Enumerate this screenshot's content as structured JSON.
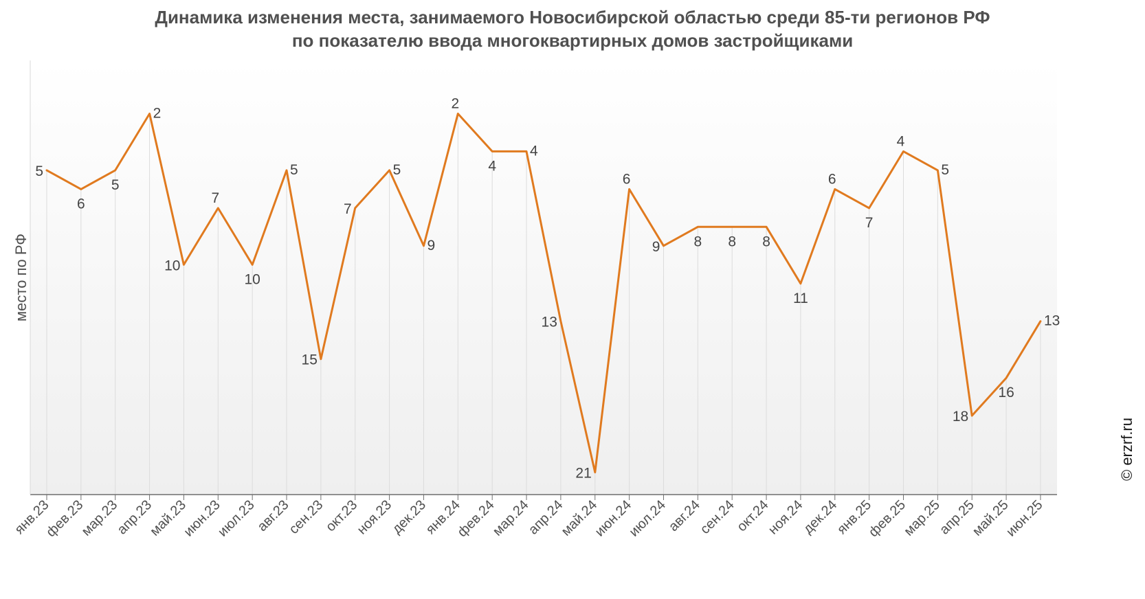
{
  "chart_data": {
    "type": "line",
    "title_line1": "Динамика изменения места, занимаемого Новосибирской областью среди 85-ти регионов РФ",
    "title_line2": "по показателю ввода многоквартирных домов застройщиками",
    "xlabel": "",
    "ylabel": "место по РФ",
    "ylim": [
      1,
      24
    ],
    "y_inverted": true,
    "grid": "vertical drop lines",
    "line_color": "#e07a1f",
    "categories": [
      "янв.23",
      "фев.23",
      "мар.23",
      "апр.23",
      "май.23",
      "июн.23",
      "июл.23",
      "авг.23",
      "сен.23",
      "окт.23",
      "ноя.23",
      "дек.23",
      "янв.24",
      "фев.24",
      "мар.24",
      "апр.24",
      "май.24",
      "июн.24",
      "июл.24",
      "авг.24",
      "сен.24",
      "окт.24",
      "ноя.24",
      "дек.24",
      "янв.25",
      "фев.25",
      "мар.25",
      "апр.25",
      "май.25",
      "июн.25"
    ],
    "values": [
      5,
      6,
      5,
      2,
      10,
      7,
      10,
      5,
      15,
      7,
      5,
      9,
      2,
      4,
      4,
      13,
      21,
      6,
      9,
      8,
      8,
      8,
      11,
      6,
      7,
      4,
      5,
      18,
      16,
      13
    ],
    "label_side": [
      "left",
      "below",
      "below",
      "right",
      "left",
      "above",
      "below",
      "right",
      "left",
      "left",
      "right",
      "right",
      "above",
      "below",
      "right",
      "left",
      "left",
      "above",
      "left",
      "below",
      "below",
      "below",
      "below",
      "above",
      "below",
      "above",
      "right",
      "left",
      "below",
      "right"
    ]
  },
  "credit": "© erzrf.ru"
}
